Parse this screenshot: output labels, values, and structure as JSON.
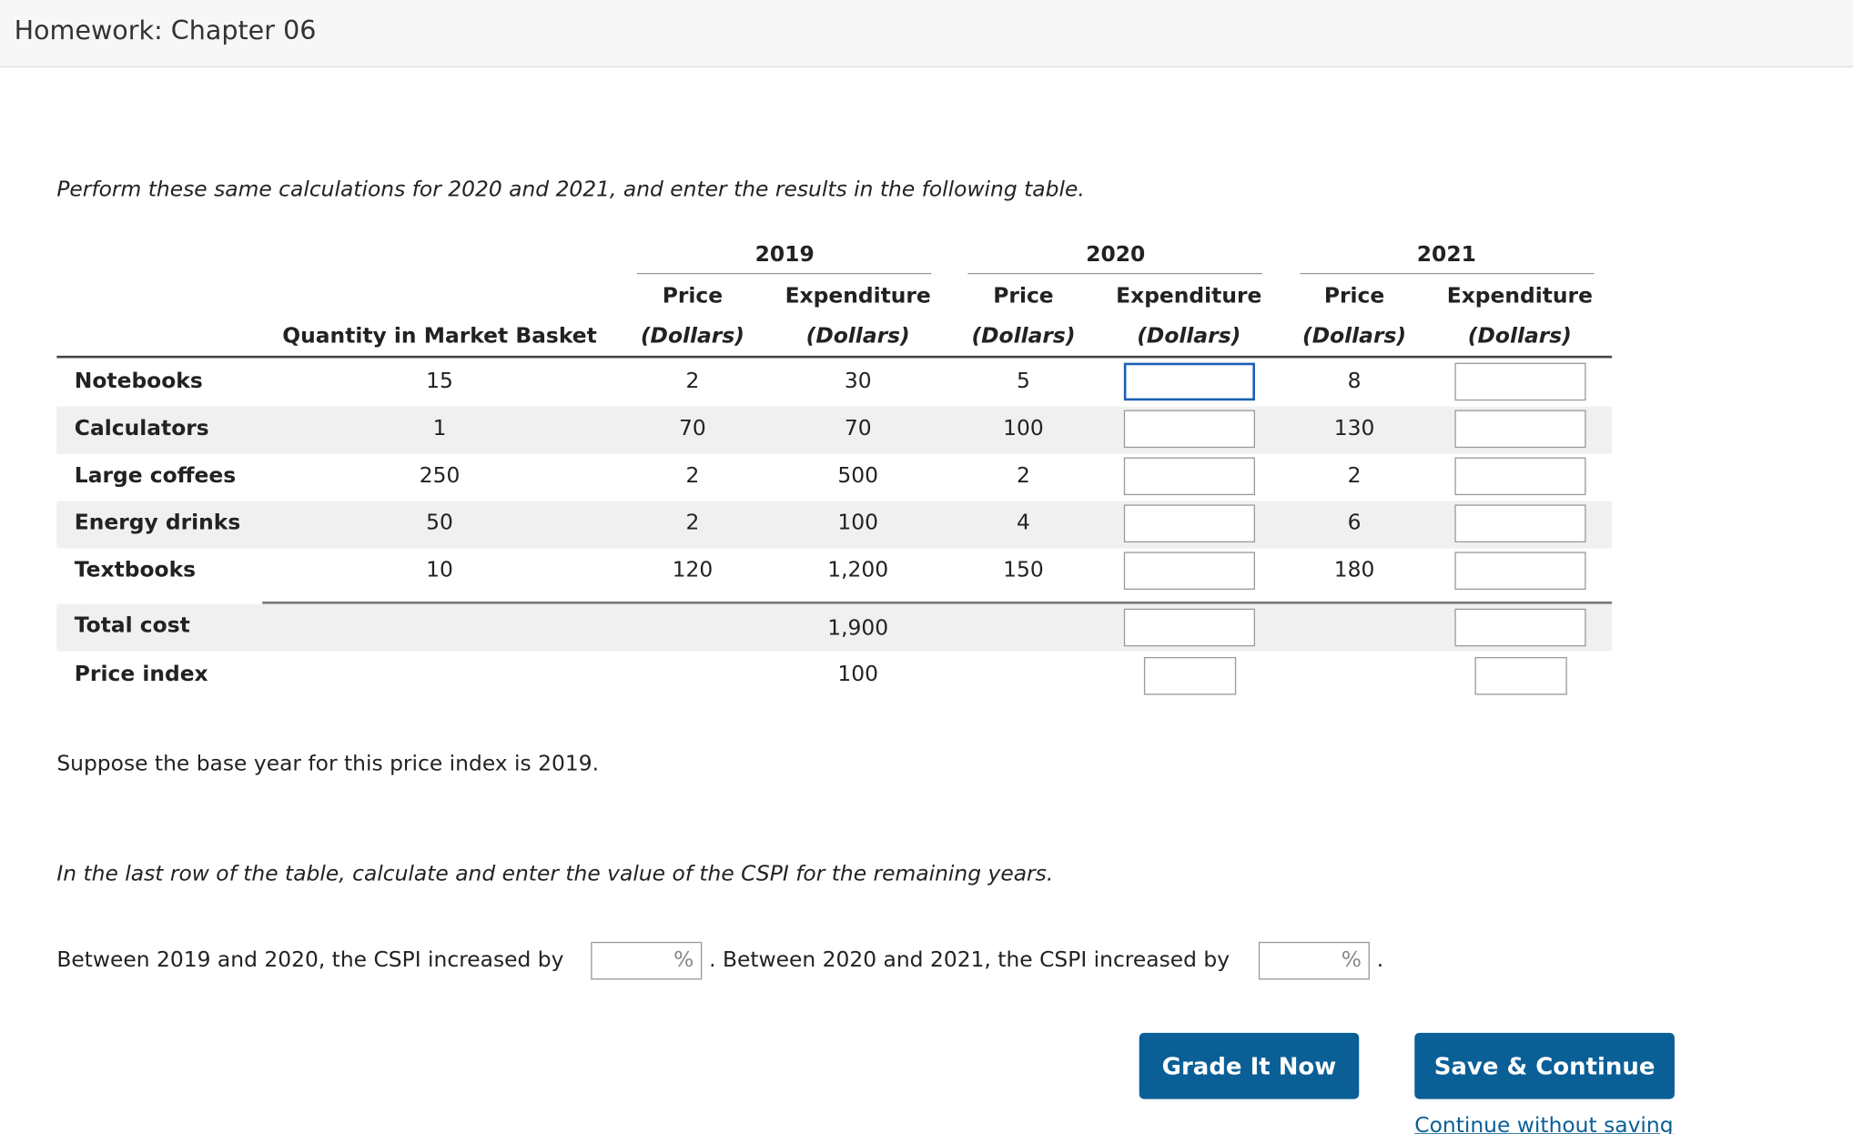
{
  "header": {
    "title": "Homework: Chapter 06"
  },
  "instructions": "Perform these same calculations for 2020 and 2021, and enter the results in the following table.",
  "table": {
    "year_headers": [
      "2019",
      "2020",
      "2021"
    ],
    "column_headers": {
      "top": [
        "Price",
        "Expenditure",
        "Price",
        "Expenditure",
        "Price",
        "Expenditure"
      ],
      "bottom": [
        "Quantity in Market Basket",
        "(Dollars)",
        "(Dollars)",
        "(Dollars)",
        "(Dollars)",
        "(Dollars)",
        "(Dollars)"
      ]
    },
    "rows": [
      [
        "Notebooks",
        "15",
        "2",
        "30",
        "5",
        "8"
      ],
      [
        "Calculators",
        "1",
        "70",
        "70",
        "100",
        "130"
      ],
      [
        "Large coffees",
        "250",
        "2",
        "500",
        "2",
        "2"
      ],
      [
        "Energy drinks",
        "50",
        "2",
        "100",
        "4",
        "6"
      ],
      [
        "Textbooks",
        "10",
        "120",
        "1,200",
        "150",
        "180"
      ]
    ],
    "total_cost": {
      "label": "Total cost",
      "expenditure_2019": "1,900"
    },
    "price_index": {
      "label": "Price index",
      "value_2019": "100"
    }
  },
  "base_year_note": "Suppose the base year for this price index is 2019.",
  "cspi_instruction": "In the last row of the table, calculate and enter the value of the CSPI for the remaining years.",
  "cspi_question": {
    "part1": "Between 2019 and 2020, the CSPI increased by",
    "unit": "%",
    "part2": ". Between 2020 and 2021, the CSPI increased by",
    "end": "."
  },
  "buttons": {
    "grade": "Grade It Now",
    "save": "Save & Continue",
    "skip": "Continue without saving"
  }
}
